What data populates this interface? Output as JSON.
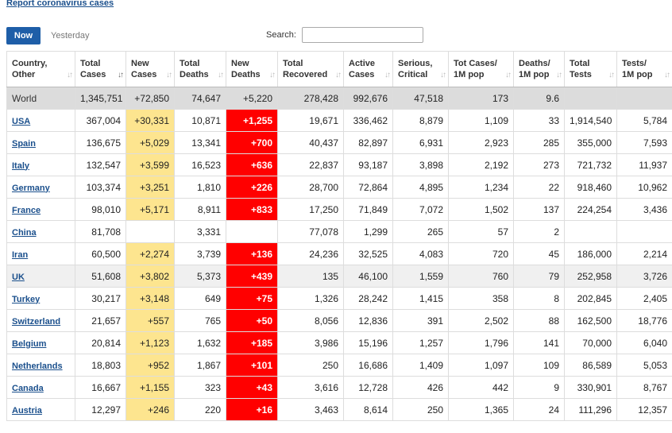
{
  "header": {
    "report_link": "Report coronavirus cases",
    "tab_now": "Now",
    "tab_yesterday": "Yesterday",
    "search_label": "Search:",
    "search_value": ""
  },
  "columns": [
    {
      "l1": "Country,",
      "l2": "Other"
    },
    {
      "l1": "Total",
      "l2": "Cases"
    },
    {
      "l1": "New",
      "l2": "Cases"
    },
    {
      "l1": "Total",
      "l2": "Deaths"
    },
    {
      "l1": "New",
      "l2": "Deaths"
    },
    {
      "l1": "Total",
      "l2": "Recovered"
    },
    {
      "l1": "Active",
      "l2": "Cases"
    },
    {
      "l1": "Serious,",
      "l2": "Critical"
    },
    {
      "l1": "Tot Cases/",
      "l2": "1M pop"
    },
    {
      "l1": "Deaths/",
      "l2": "1M pop"
    },
    {
      "l1": "Total",
      "l2": "Tests"
    },
    {
      "l1": "Tests/",
      "l2": "1M pop"
    }
  ],
  "world": [
    "World",
    "1,345,751",
    "+72,850",
    "74,647",
    "+5,220",
    "278,428",
    "992,676",
    "47,518",
    "173",
    "9.6",
    "",
    ""
  ],
  "rows": [
    [
      "USA",
      "367,004",
      "+30,331",
      "10,871",
      "+1,255",
      "19,671",
      "336,462",
      "8,879",
      "1,109",
      "33",
      "1,914,540",
      "5,784"
    ],
    [
      "Spain",
      "136,675",
      "+5,029",
      "13,341",
      "+700",
      "40,437",
      "82,897",
      "6,931",
      "2,923",
      "285",
      "355,000",
      "7,593"
    ],
    [
      "Italy",
      "132,547",
      "+3,599",
      "16,523",
      "+636",
      "22,837",
      "93,187",
      "3,898",
      "2,192",
      "273",
      "721,732",
      "11,937"
    ],
    [
      "Germany",
      "103,374",
      "+3,251",
      "1,810",
      "+226",
      "28,700",
      "72,864",
      "4,895",
      "1,234",
      "22",
      "918,460",
      "10,962"
    ],
    [
      "France",
      "98,010",
      "+5,171",
      "8,911",
      "+833",
      "17,250",
      "71,849",
      "7,072",
      "1,502",
      "137",
      "224,254",
      "3,436"
    ],
    [
      "China",
      "81,708",
      "",
      "3,331",
      "",
      "77,078",
      "1,299",
      "265",
      "57",
      "2",
      "",
      ""
    ],
    [
      "Iran",
      "60,500",
      "+2,274",
      "3,739",
      "+136",
      "24,236",
      "32,525",
      "4,083",
      "720",
      "45",
      "186,000",
      "2,214"
    ],
    [
      "UK",
      "51,608",
      "+3,802",
      "5,373",
      "+439",
      "135",
      "46,100",
      "1,559",
      "760",
      "79",
      "252,958",
      "3,726"
    ],
    [
      "Turkey",
      "30,217",
      "+3,148",
      "649",
      "+75",
      "1,326",
      "28,242",
      "1,415",
      "358",
      "8",
      "202,845",
      "2,405"
    ],
    [
      "Switzerland",
      "21,657",
      "+557",
      "765",
      "+50",
      "8,056",
      "12,836",
      "391",
      "2,502",
      "88",
      "162,500",
      "18,776"
    ],
    [
      "Belgium",
      "20,814",
      "+1,123",
      "1,632",
      "+185",
      "3,986",
      "15,196",
      "1,257",
      "1,796",
      "141",
      "70,000",
      "6,040"
    ],
    [
      "Netherlands",
      "18,803",
      "+952",
      "1,867",
      "+101",
      "250",
      "16,686",
      "1,409",
      "1,097",
      "109",
      "86,589",
      "5,053"
    ],
    [
      "Canada",
      "16,667",
      "+1,155",
      "323",
      "+43",
      "3,616",
      "12,728",
      "426",
      "442",
      "9",
      "330,901",
      "8,767"
    ],
    [
      "Austria",
      "12,297",
      "+246",
      "220",
      "+16",
      "3,463",
      "8,614",
      "250",
      "1,365",
      "24",
      "111,296",
      "12,357"
    ]
  ],
  "colors": {
    "new_cases_bg": "#fde58f",
    "new_deaths_bg": "#ff0000",
    "world_row_bg": "#dcdcdc",
    "link": "#1a4f8c",
    "now_button": "#1e5ea8"
  }
}
